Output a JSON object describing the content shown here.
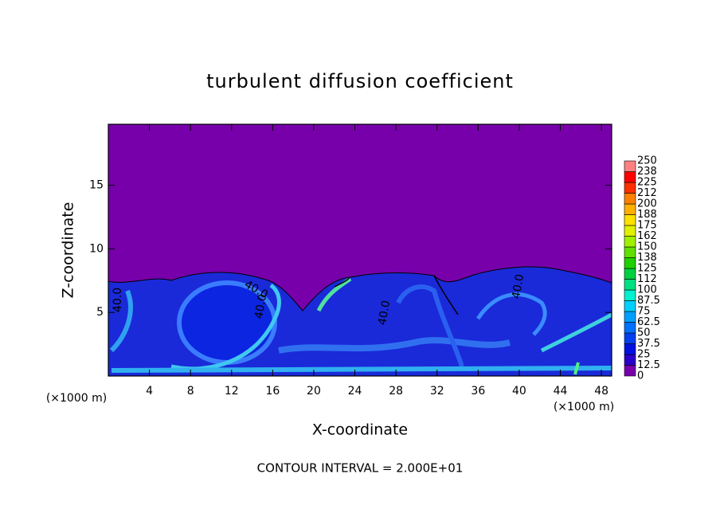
{
  "chart_data": {
    "type": "heatmap",
    "title": "turbulent diffusion coefficient",
    "x_label": "X-coordinate",
    "y_label": "Z-coordinate",
    "x_unit": "(×1000 m)",
    "y_unit": "(×1000 m)",
    "footnote": "CONTOUR INTERVAL = 2.000E+01",
    "contour_label": "40.0",
    "xlim": [
      0,
      49
    ],
    "ylim": [
      0,
      19.8
    ],
    "xticks": [
      4,
      8,
      12,
      16,
      20,
      24,
      28,
      32,
      36,
      40,
      44,
      48
    ],
    "yticks": [
      5,
      10,
      15
    ],
    "colorbar": {
      "ticks": [
        0,
        12.5,
        25,
        37.5,
        50,
        62.5,
        75,
        87.5,
        100,
        112,
        125,
        138,
        150,
        162,
        175,
        188,
        200,
        212,
        225,
        238,
        250
      ],
      "colors": [
        "#7700aa",
        "#2a00c8",
        "#0010e0",
        "#0040f0",
        "#0070ff",
        "#00a0ff",
        "#00d0ff",
        "#00f0d0",
        "#00e080",
        "#00d040",
        "#20d000",
        "#60e000",
        "#a0f000",
        "#e0f000",
        "#ffe000",
        "#ffb000",
        "#ff8000",
        "#ff3000",
        "#ff0000",
        "#ff8080"
      ]
    }
  }
}
